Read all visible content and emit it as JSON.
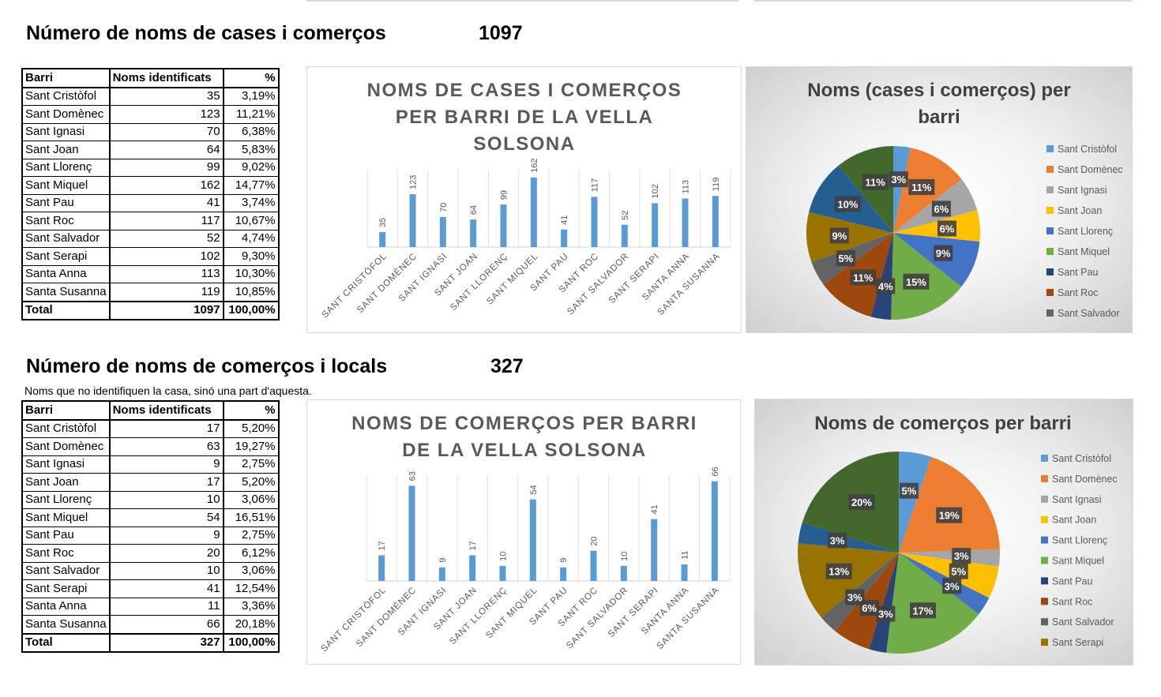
{
  "section1": {
    "heading": "Número de noms de cases i comerços",
    "total": "1097",
    "table": {
      "headers": [
        "Barri",
        "Noms identificats",
        "%"
      ],
      "rows": [
        [
          "Sant Cristòfol",
          "35",
          "3,19%"
        ],
        [
          "Sant Domènec",
          "123",
          "11,21%"
        ],
        [
          "Sant Ignasi",
          "70",
          "6,38%"
        ],
        [
          "Sant Joan",
          "64",
          "5,83%"
        ],
        [
          "Sant Llorenç",
          "99",
          "9,02%"
        ],
        [
          "Sant Miquel",
          "162",
          "14,77%"
        ],
        [
          "Sant Pau",
          "41",
          "3,74%"
        ],
        [
          "Sant Roc",
          "117",
          "10,67%"
        ],
        [
          "Sant Salvador",
          "52",
          "4,74%"
        ],
        [
          "Sant Serapi",
          "102",
          "9,30%"
        ],
        [
          "Santa Anna",
          "113",
          "10,30%"
        ],
        [
          "Santa Susanna",
          "119",
          "10,85%"
        ]
      ],
      "total_row": [
        "Total",
        "1097",
        "100,00%"
      ]
    }
  },
  "section2": {
    "heading": "Número de noms de comerços i locals",
    "total": "327",
    "note": "Noms que no identifiquen la casa, sinó una part d'aquesta.",
    "table": {
      "headers": [
        "Barri",
        "Noms identificats",
        "%"
      ],
      "rows": [
        [
          "Sant Cristòfol",
          "17",
          "5,20%"
        ],
        [
          "Sant Domènec",
          "63",
          "19,27%"
        ],
        [
          "Sant Ignasi",
          "9",
          "2,75%"
        ],
        [
          "Sant Joan",
          "17",
          "5,20%"
        ],
        [
          "Sant Llorenç",
          "10",
          "3,06%"
        ],
        [
          "Sant Miquel",
          "54",
          "16,51%"
        ],
        [
          "Sant Pau",
          "9",
          "2,75%"
        ],
        [
          "Sant Roc",
          "20",
          "6,12%"
        ],
        [
          "Sant Salvador",
          "10",
          "3,06%"
        ],
        [
          "Sant Serapi",
          "41",
          "12,54%"
        ],
        [
          "Santa Anna",
          "11",
          "3,36%"
        ],
        [
          "Santa Susanna",
          "66",
          "20,18%"
        ]
      ],
      "total_row": [
        "Total",
        "327",
        "100,00%"
      ]
    }
  },
  "colors": {
    "bar": "#5b9bd5",
    "slices": [
      "#5b9bd5",
      "#ed7d31",
      "#a5a5a5",
      "#ffc000",
      "#4472c4",
      "#70ad47",
      "#264478",
      "#9e480e",
      "#636363",
      "#997300",
      "#255e91",
      "#43682b"
    ]
  },
  "chart_data": [
    {
      "type": "bar",
      "title": "NOMS DE CASES I COMERÇOS PER BARRI DE LA VELLA SOLSONA",
      "categories": [
        "SANT CRISTÒFOL",
        "SANT DOMÈNEC",
        "SANT IGNASI",
        "SANT JOAN",
        "SANT LLORENÇ",
        "SANT MIQUEL",
        "SANT PAU",
        "SANT ROC",
        "SANT SALVADOR",
        "SANT SERAPI",
        "SANTA ANNA",
        "SANTA SUSANNA"
      ],
      "values": [
        35,
        123,
        70,
        64,
        99,
        162,
        41,
        117,
        52,
        102,
        113,
        119
      ],
      "data_labels": [
        "35",
        "123",
        "70",
        "64",
        "99",
        "162",
        "41",
        "117",
        "52",
        "102",
        "113",
        "119"
      ],
      "ylim": [
        0,
        180
      ]
    },
    {
      "type": "pie",
      "title": "Noms (cases i comerços) per barri",
      "categories": [
        "Sant Cristòfol",
        "Sant Domènec",
        "Sant Ignasi",
        "Sant Joan",
        "Sant Llorenç",
        "Sant Miquel",
        "Sant Pau",
        "Sant Roc",
        "Sant Salvador",
        "Sant Serapi",
        "Santa Anna",
        "Santa Susanna"
      ],
      "values": [
        35,
        123,
        70,
        64,
        99,
        162,
        41,
        117,
        52,
        102,
        113,
        119
      ],
      "data_labels": [
        "3%",
        "11%",
        "6%",
        "6%",
        "9%",
        "15%",
        "4%",
        "11%",
        "5%",
        "9%",
        "10%",
        "11%"
      ],
      "legend": [
        "Sant Cristòfol",
        "Sant Domènec",
        "Sant Ignasi",
        "Sant Joan",
        "Sant Llorenç",
        "Sant Miquel",
        "Sant Pau",
        "Sant Roc",
        "Sant Salvador"
      ],
      "legend_position": "right"
    },
    {
      "type": "bar",
      "title": "NOMS DE COMERÇOS PER BARRI DE LA VELLA SOLSONA",
      "categories": [
        "SANT CRISTÒFOL",
        "SANT DOMÈNEC",
        "SANT IGNASI",
        "SANT JOAN",
        "SANT LLORENÇ",
        "SANT MIQUEL",
        "SANT PAU",
        "SANT ROC",
        "SANT SALVADOR",
        "SANT SERAPI",
        "SANTA ANNA",
        "SANTA SUSANNA"
      ],
      "values": [
        17,
        63,
        9,
        17,
        10,
        54,
        9,
        20,
        10,
        41,
        11,
        66
      ],
      "data_labels": [
        "17",
        "63",
        "9",
        "17",
        "10",
        "54",
        "9",
        "20",
        "10",
        "41",
        "11",
        "66"
      ],
      "ylim": [
        0,
        70
      ]
    },
    {
      "type": "pie",
      "title": "Noms de comerços per barri",
      "categories": [
        "Sant Cristòfol",
        "Sant Domènec",
        "Sant Ignasi",
        "Sant Joan",
        "Sant Llorenç",
        "Sant Miquel",
        "Sant Pau",
        "Sant Roc",
        "Sant Salvador",
        "Sant Serapi",
        "Santa Anna",
        "Santa Susanna"
      ],
      "values": [
        17,
        63,
        9,
        17,
        10,
        54,
        9,
        20,
        10,
        41,
        11,
        66
      ],
      "data_labels": [
        "5%",
        "19%",
        "3%",
        "5%",
        "3%",
        "17%",
        "3%",
        "6%",
        "3%",
        "13%",
        "3%",
        "20%"
      ],
      "legend": [
        "Sant Cristòfol",
        "Sant Domènec",
        "Sant Ignasi",
        "Sant Joan",
        "Sant Llorenç",
        "Sant Miquel",
        "Sant Pau",
        "Sant Roc",
        "Sant Salvador",
        "Sant Serapi"
      ],
      "legend_position": "right"
    }
  ]
}
